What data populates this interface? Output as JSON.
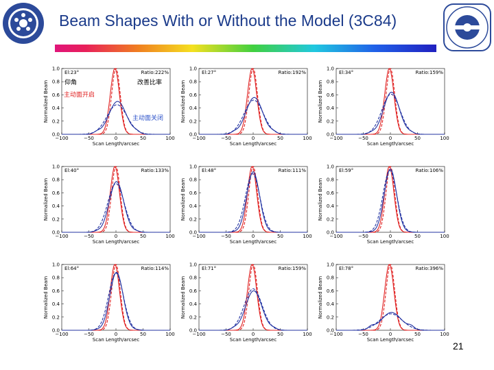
{
  "slide": {
    "title": "Beam Shapes With or Without the Model (3C84)",
    "page_number": "21"
  },
  "annotations": {
    "elevation": "仰角",
    "improvement": "改善比率",
    "active_on": "主动面开启",
    "active_off": "主动面关闭"
  },
  "colors": {
    "title": "#1a3a8a",
    "model_on": "#e02020",
    "model_off": "#2030a0",
    "annotation_on": "#e02020",
    "annotation_off": "#2a50c8"
  },
  "chart_data": [
    {
      "type": "line",
      "elevation": "El:23°",
      "ratio": "Ratio:222%",
      "xlabel": "Scan Length/arcsec",
      "ylabel": "Normalized Beam",
      "xlim": [
        -100,
        100
      ],
      "ylim": [
        0,
        1
      ],
      "xticks": [
        "−100",
        "−50",
        "0",
        "50",
        "100"
      ],
      "yticks": [
        "0.0",
        "0.2",
        "0.4",
        "0.6",
        "0.8",
        "1.0"
      ],
      "on_peak": 1.0,
      "off_peak": 0.45,
      "off_shift": 3,
      "off_solid_peak": 0.5
    },
    {
      "type": "line",
      "elevation": "El:27°",
      "ratio": "Ratio:192%",
      "xlabel": "Scan Length/arcsec",
      "ylabel": "Normalized Beam",
      "xlim": [
        -100,
        100
      ],
      "ylim": [
        0,
        1
      ],
      "xticks": [
        "−100",
        "−50",
        "0",
        "50",
        "100"
      ],
      "yticks": [
        "0.0",
        "0.2",
        "0.4",
        "0.6",
        "0.8",
        "1.0"
      ],
      "on_peak": 1.0,
      "off_peak": 0.52,
      "off_shift": 2,
      "off_solid_peak": 0.56
    },
    {
      "type": "line",
      "elevation": "El:34°",
      "ratio": "Ratio:159%",
      "xlabel": "Scan Length/arcsec",
      "ylabel": "Normalized Beam",
      "xlim": [
        -100,
        100
      ],
      "ylim": [
        0,
        1
      ],
      "xticks": [
        "−100",
        "−50",
        "0",
        "50",
        "100"
      ],
      "yticks": [
        "0.0",
        "0.2",
        "0.4",
        "0.6",
        "0.8",
        "1.0"
      ],
      "on_peak": 1.0,
      "off_peak": 0.61,
      "off_shift": 2,
      "off_solid_peak": 0.64
    },
    {
      "type": "line",
      "elevation": "El:40°",
      "ratio": "Ratio:133%",
      "xlabel": "Scan Length/arcsec",
      "ylabel": "Normalized Beam",
      "xlim": [
        -100,
        100
      ],
      "ylim": [
        0,
        1
      ],
      "xticks": [
        "−100",
        "−50",
        "0",
        "50",
        "100"
      ],
      "yticks": [
        "0.0",
        "0.2",
        "0.4",
        "0.6",
        "0.8",
        "1.0"
      ],
      "on_peak": 1.0,
      "off_peak": 0.74,
      "off_shift": 1,
      "off_solid_peak": 0.77
    },
    {
      "type": "line",
      "elevation": "El:48°",
      "ratio": "Ratio:111%",
      "xlabel": "Scan Length/arcsec",
      "ylabel": "Normalized Beam",
      "xlim": [
        -100,
        100
      ],
      "ylim": [
        0,
        1
      ],
      "xticks": [
        "−100",
        "−50",
        "0",
        "50",
        "100"
      ],
      "yticks": [
        "0.0",
        "0.2",
        "0.4",
        "0.6",
        "0.8",
        "1.0"
      ],
      "on_peak": 1.0,
      "off_peak": 0.89,
      "off_shift": 0,
      "off_solid_peak": 0.92
    },
    {
      "type": "line",
      "elevation": "El:59°",
      "ratio": "Ratio:106%",
      "xlabel": "Scan Length/arcsec",
      "ylabel": "Normalized Beam",
      "xlim": [
        -100,
        100
      ],
      "ylim": [
        0,
        1
      ],
      "xticks": [
        "−100",
        "−50",
        "0",
        "50",
        "100"
      ],
      "yticks": [
        "0.0",
        "0.2",
        "0.4",
        "0.6",
        "0.8",
        "1.0"
      ],
      "on_peak": 1.0,
      "off_peak": 0.94,
      "off_shift": 0,
      "off_solid_peak": 0.96
    },
    {
      "type": "line",
      "elevation": "El:64°",
      "ratio": "Ratio:114%",
      "xlabel": "Scan Length/arcsec",
      "ylabel": "Normalized Beam",
      "xlim": [
        -100,
        100
      ],
      "ylim": [
        0,
        1
      ],
      "xticks": [
        "−100",
        "−50",
        "0",
        "50",
        "100"
      ],
      "yticks": [
        "0.0",
        "0.2",
        "0.4",
        "0.6",
        "0.8",
        "1.0"
      ],
      "on_peak": 1.0,
      "off_peak": 0.87,
      "off_shift": 1,
      "off_solid_peak": 0.88
    },
    {
      "type": "line",
      "elevation": "El:71°",
      "ratio": "Ratio:159%",
      "xlabel": "Scan Length/arcsec",
      "ylabel": "Normalized Beam",
      "xlim": [
        -100,
        100
      ],
      "ylim": [
        0,
        1
      ],
      "xticks": [
        "−100",
        "−50",
        "0",
        "50",
        "100"
      ],
      "yticks": [
        "0.0",
        "0.2",
        "0.4",
        "0.6",
        "0.8",
        "1.0"
      ],
      "on_peak": 1.0,
      "off_peak": 0.63,
      "off_shift": 1,
      "off_solid_peak": 0.6
    },
    {
      "type": "line",
      "elevation": "El:78°",
      "ratio": "Ratio:396%",
      "xlabel": "Scan Length/arcsec",
      "ylabel": "Normalized Beam",
      "xlim": [
        -100,
        100
      ],
      "ylim": [
        0,
        1
      ],
      "xticks": [
        "−100",
        "−50",
        "0",
        "50",
        "100"
      ],
      "yticks": [
        "0.0",
        "0.2",
        "0.4",
        "0.6",
        "0.8",
        "1.0"
      ],
      "on_peak": 1.0,
      "off_peak": 0.25,
      "off_shift": 2,
      "off_solid_peak": 0.27
    }
  ]
}
